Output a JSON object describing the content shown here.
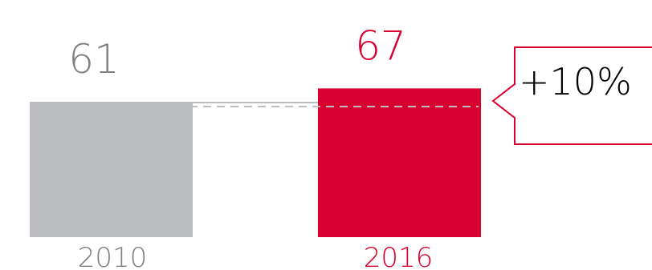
{
  "chart_data": {
    "type": "bar",
    "categories": [
      "2010",
      "2016"
    ],
    "values": [
      61,
      67
    ],
    "value_labels": [
      "61",
      "67"
    ],
    "bar_colors": [
      "#bcbdc0",
      "#d7002e"
    ],
    "label_colors": [
      "#808080",
      "#d7002e"
    ],
    "reference_line": {
      "value": 61,
      "color": "#bcbdc0",
      "style": "dashed"
    },
    "annotation": {
      "text": "+10%",
      "border_color": "#d7002e"
    },
    "title": "",
    "xlabel": "",
    "ylabel": "",
    "axis": false,
    "grid": false,
    "legend": false
  }
}
